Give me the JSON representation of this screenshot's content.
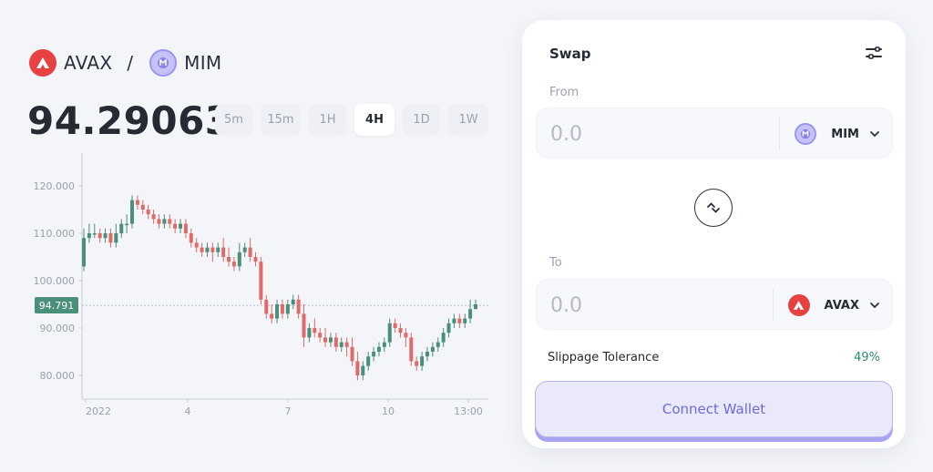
{
  "pair": {
    "base": "AVAX",
    "separator": "/",
    "quote": "MIM",
    "base_icon": "avax-token-icon",
    "quote_icon": "mim-token-icon"
  },
  "price": "94.29063",
  "timeframes": [
    {
      "label": "5m",
      "active": false
    },
    {
      "label": "15m",
      "active": false
    },
    {
      "label": "1H",
      "active": false
    },
    {
      "label": "4H",
      "active": true
    },
    {
      "label": "1D",
      "active": false
    },
    {
      "label": "1W",
      "active": false
    }
  ],
  "chart_data": {
    "type": "candlestick",
    "y_ticks": [
      "120.000",
      "110.000",
      "100.000",
      "90.000",
      "80.000"
    ],
    "x_ticks": [
      "2022",
      "4",
      "7",
      "10",
      "13:00"
    ],
    "ylim": [
      75,
      125
    ],
    "current_price_label": "94.791",
    "current_price": 94.791,
    "up_color": "#4a8f7a",
    "down_color": "#e06a6a",
    "candles": [
      [
        103,
        109,
        111,
        102
      ],
      [
        109,
        110,
        112,
        108
      ],
      [
        110,
        110,
        112,
        109
      ],
      [
        110,
        109,
        111,
        108
      ],
      [
        109,
        110,
        111,
        108
      ],
      [
        110,
        108,
        111,
        107
      ],
      [
        108,
        110,
        112,
        107
      ],
      [
        110,
        112,
        113,
        109
      ],
      [
        112,
        112,
        114,
        110
      ],
      [
        112,
        117,
        118,
        111
      ],
      [
        117,
        116,
        118,
        115
      ],
      [
        116,
        115,
        117,
        114
      ],
      [
        115,
        114,
        116,
        113
      ],
      [
        114,
        113,
        115,
        112
      ],
      [
        113,
        112,
        114,
        111
      ],
      [
        112,
        113,
        114,
        111
      ],
      [
        113,
        112,
        114,
        111
      ],
      [
        112,
        111,
        113,
        110
      ],
      [
        111,
        112,
        113,
        110
      ],
      [
        112,
        110,
        113,
        109
      ],
      [
        110,
        108,
        111,
        107
      ],
      [
        108,
        107,
        109,
        106
      ],
      [
        107,
        106,
        108,
        105
      ],
      [
        106,
        107,
        108,
        105
      ],
      [
        107,
        106,
        108,
        104
      ],
      [
        106,
        107,
        108,
        105
      ],
      [
        107,
        105,
        109,
        104
      ],
      [
        105,
        104,
        107,
        103
      ],
      [
        104,
        103,
        105,
        102
      ],
      [
        103,
        106,
        108,
        102
      ],
      [
        106,
        107,
        108,
        105
      ],
      [
        107,
        105,
        109,
        104
      ],
      [
        105,
        104,
        106,
        103
      ],
      [
        104,
        96,
        105,
        95
      ],
      [
        96,
        93,
        97,
        92
      ],
      [
        93,
        92,
        95,
        91
      ],
      [
        92,
        95,
        96,
        91
      ],
      [
        95,
        93,
        96,
        92
      ],
      [
        93,
        95,
        96,
        92
      ],
      [
        95,
        96,
        97,
        94
      ],
      [
        96,
        93,
        97,
        92
      ],
      [
        93,
        88,
        95,
        86
      ],
      [
        88,
        90,
        91,
        87
      ],
      [
        90,
        89,
        92,
        88
      ],
      [
        89,
        88,
        90,
        87
      ],
      [
        88,
        87,
        90,
        86
      ],
      [
        87,
        88,
        89,
        86
      ],
      [
        88,
        86,
        89,
        85
      ],
      [
        86,
        87,
        88,
        85
      ],
      [
        87,
        86,
        88,
        84
      ],
      [
        86,
        83,
        88,
        82
      ],
      [
        83,
        80,
        85,
        79
      ],
      [
        80,
        82,
        83,
        79
      ],
      [
        82,
        84,
        85,
        81
      ],
      [
        84,
        85,
        86,
        83
      ],
      [
        85,
        86,
        87,
        84
      ],
      [
        86,
        87,
        88,
        85
      ],
      [
        87,
        91,
        92,
        86
      ],
      [
        91,
        90,
        92,
        89
      ],
      [
        90,
        89,
        91,
        88
      ],
      [
        89,
        88,
        90,
        86
      ],
      [
        88,
        83,
        89,
        82
      ],
      [
        83,
        82,
        84,
        81
      ],
      [
        82,
        84,
        85,
        81
      ],
      [
        84,
        85,
        86,
        83
      ],
      [
        85,
        86,
        87,
        84
      ],
      [
        86,
        87,
        88,
        85
      ],
      [
        87,
        89,
        90,
        86
      ],
      [
        89,
        91,
        92,
        88
      ],
      [
        91,
        92,
        93,
        90
      ],
      [
        92,
        91,
        93,
        90
      ],
      [
        91,
        92,
        93,
        90
      ],
      [
        92,
        94,
        96,
        91
      ],
      [
        94,
        95,
        96,
        94
      ]
    ]
  },
  "swap": {
    "title": "Swap",
    "settings_icon": "sliders-icon",
    "from_label": "From",
    "from_placeholder": "0.0",
    "from_token": "MIM",
    "flip_icon": "swap-direction-icon",
    "to_label": "To",
    "to_placeholder": "0.0",
    "to_token": "AVAX",
    "slippage_label": "Slippage Tolerance",
    "slippage_value": "49%",
    "connect_label": "Connect Wallet"
  }
}
